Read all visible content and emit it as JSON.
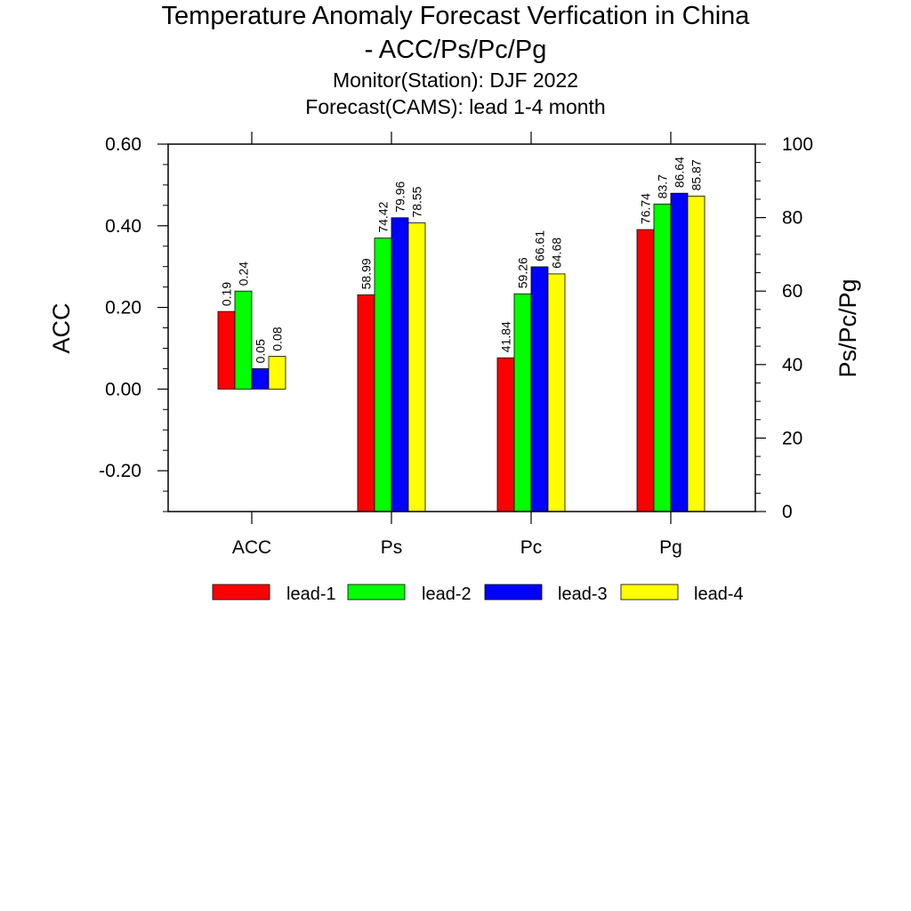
{
  "title": "Temperature Anomaly Forecast Verfication in China",
  "title_line2": "- ACC/Ps/Pc/Pg",
  "subtitle1": "Monitor(Station): DJF 2022",
  "subtitle2": "Forecast(CAMS): lead 1-4 month",
  "colors": {
    "lead-1": "#ff0000",
    "lead-2": "#00ff00",
    "lead-3": "#0000ff",
    "lead-4": "#ffff00"
  },
  "chart_data": {
    "type": "bar",
    "categories": [
      "ACC",
      "Ps",
      "Pc",
      "Pg"
    ],
    "series": [
      {
        "name": "lead-1",
        "values": [
          0.19,
          58.99,
          41.84,
          76.74
        ],
        "labels": [
          "0.19",
          "58.99",
          "41.84",
          "76.74"
        ]
      },
      {
        "name": "lead-2",
        "values": [
          0.24,
          74.42,
          59.26,
          83.7
        ],
        "labels": [
          "0.24",
          "74.42",
          "59.26",
          "83.7"
        ]
      },
      {
        "name": "lead-3",
        "values": [
          0.05,
          79.96,
          66.61,
          86.64
        ],
        "labels": [
          "0.05",
          "79.96",
          "66.61",
          "86.64"
        ]
      },
      {
        "name": "lead-4",
        "values": [
          0.08,
          78.55,
          64.68,
          85.87
        ],
        "labels": [
          "0.08",
          "78.55",
          "64.68",
          "85.87"
        ]
      }
    ],
    "category_axis": [
      "left",
      "right",
      "right",
      "right"
    ],
    "ylabel_left": "ACC",
    "ylabel_right": "Ps/Pc/Pg",
    "ylim_left": [
      -0.3,
      0.6
    ],
    "ylim_right": [
      0,
      100
    ],
    "yticks_left": [
      "0.60",
      "0.40",
      "0.20",
      "0.00",
      "-0.20"
    ],
    "yticks_left_values": [
      0.6,
      0.4,
      0.2,
      0.0,
      -0.2
    ],
    "yticks_right": [
      "100",
      "80",
      "60",
      "40",
      "20",
      "0"
    ],
    "yticks_right_values": [
      100,
      80,
      60,
      40,
      20,
      0
    ],
    "legend_position": "bottom",
    "grid": false
  }
}
